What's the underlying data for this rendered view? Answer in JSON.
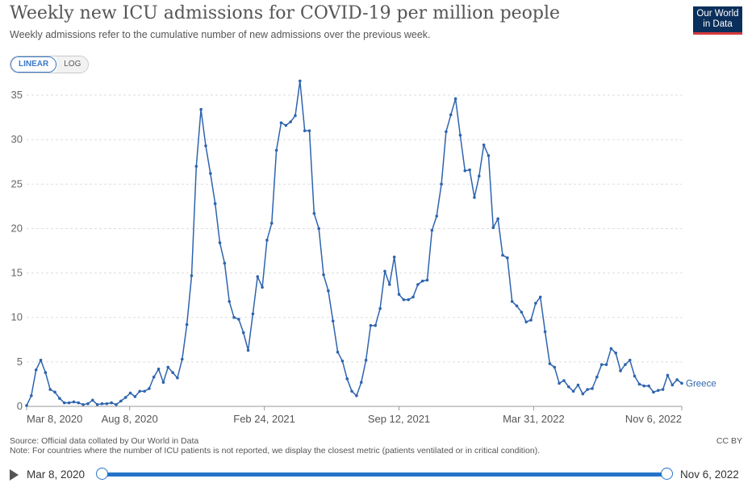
{
  "header": {
    "title": "Weekly new ICU admissions for COVID-19 per million people",
    "subtitle": "Weekly admissions refer to the cumulative number of new admissions over the previous week.",
    "logo_line1": "Our World",
    "logo_line2": "in Data"
  },
  "scale_toggle": {
    "linear_label": "LINEAR",
    "log_label": "LOG",
    "selected": "LINEAR"
  },
  "footer": {
    "source": "Source: Official data collated by Our World in Data",
    "note": "Note: For countries where the number of ICU patients is not reported, we display the closest metric (patients ventilated or in critical condition).",
    "license": "CC BY"
  },
  "timeline": {
    "start_label": "Mar 8, 2020",
    "end_label": "Nov 6, 2022"
  },
  "colors": {
    "series": "#2e64ae",
    "accent": "#2574c9",
    "logo_bg": "#0b2f5b",
    "logo_bar": "#d73a3a"
  },
  "chart_data": {
    "type": "line",
    "title": "Weekly new ICU admissions for COVID-19 per million people",
    "ylim": [
      0,
      37
    ],
    "y_ticks": [
      0,
      5,
      10,
      15,
      20,
      25,
      30,
      35
    ],
    "x_range": [
      "2020-03-08",
      "2022-11-06"
    ],
    "x_ticks": [
      {
        "date": "2020-03-08",
        "label": "Mar 8, 2020"
      },
      {
        "date": "2020-08-08",
        "label": "Aug 8, 2020"
      },
      {
        "date": "2021-02-24",
        "label": "Feb 24, 2021"
      },
      {
        "date": "2021-09-12",
        "label": "Sep 12, 2021"
      },
      {
        "date": "2022-03-31",
        "label": "Mar 31, 2022"
      },
      {
        "date": "2022-11-06",
        "label": "Nov 6, 2022"
      }
    ],
    "grid": "horizontal",
    "series": [
      {
        "name": "Greece",
        "points": [
          [
            "2020-03-08",
            0.1
          ],
          [
            "2020-03-15",
            1.2
          ],
          [
            "2020-03-22",
            4.1
          ],
          [
            "2020-03-29",
            5.2
          ],
          [
            "2020-04-05",
            3.8
          ],
          [
            "2020-04-12",
            1.9
          ],
          [
            "2020-04-19",
            1.6
          ],
          [
            "2020-04-26",
            0.9
          ],
          [
            "2020-05-03",
            0.4
          ],
          [
            "2020-05-10",
            0.4
          ],
          [
            "2020-05-17",
            0.5
          ],
          [
            "2020-05-24",
            0.4
          ],
          [
            "2020-05-31",
            0.2
          ],
          [
            "2020-06-07",
            0.3
          ],
          [
            "2020-06-14",
            0.7
          ],
          [
            "2020-06-21",
            0.2
          ],
          [
            "2020-06-28",
            0.3
          ],
          [
            "2020-07-05",
            0.3
          ],
          [
            "2020-07-12",
            0.4
          ],
          [
            "2020-07-19",
            0.2
          ],
          [
            "2020-07-26",
            0.6
          ],
          [
            "2020-08-02",
            1.0
          ],
          [
            "2020-08-09",
            1.5
          ],
          [
            "2020-08-16",
            1.1
          ],
          [
            "2020-08-23",
            1.7
          ],
          [
            "2020-08-30",
            1.7
          ],
          [
            "2020-09-06",
            2.0
          ],
          [
            "2020-09-13",
            3.3
          ],
          [
            "2020-09-20",
            4.2
          ],
          [
            "2020-09-27",
            2.7
          ],
          [
            "2020-10-04",
            4.4
          ],
          [
            "2020-10-11",
            3.8
          ],
          [
            "2020-10-18",
            3.2
          ],
          [
            "2020-10-25",
            5.3
          ],
          [
            "2020-11-01",
            9.2
          ],
          [
            "2020-11-08",
            14.7
          ],
          [
            "2020-11-15",
            27.0
          ],
          [
            "2020-11-22",
            33.4
          ],
          [
            "2020-11-29",
            29.3
          ],
          [
            "2020-12-06",
            26.2
          ],
          [
            "2020-12-13",
            22.8
          ],
          [
            "2020-12-20",
            18.4
          ],
          [
            "2020-12-27",
            16.1
          ],
          [
            "2021-01-03",
            11.8
          ],
          [
            "2021-01-10",
            10.0
          ],
          [
            "2021-01-17",
            9.8
          ],
          [
            "2021-01-24",
            8.3
          ],
          [
            "2021-01-31",
            6.3
          ],
          [
            "2021-02-07",
            10.4
          ],
          [
            "2021-02-14",
            14.6
          ],
          [
            "2021-02-21",
            13.4
          ],
          [
            "2021-02-28",
            18.7
          ],
          [
            "2021-03-07",
            20.6
          ],
          [
            "2021-03-14",
            28.8
          ],
          [
            "2021-03-21",
            31.9
          ],
          [
            "2021-03-28",
            31.6
          ],
          [
            "2021-04-04",
            32.0
          ],
          [
            "2021-04-11",
            32.7
          ],
          [
            "2021-04-18",
            36.6
          ],
          [
            "2021-04-25",
            31.0
          ],
          [
            "2021-05-02",
            31.0
          ],
          [
            "2021-05-09",
            21.7
          ],
          [
            "2021-05-16",
            20.0
          ],
          [
            "2021-05-23",
            14.8
          ],
          [
            "2021-05-30",
            13.0
          ],
          [
            "2021-06-06",
            9.6
          ],
          [
            "2021-06-13",
            6.1
          ],
          [
            "2021-06-20",
            5.1
          ],
          [
            "2021-06-27",
            3.1
          ],
          [
            "2021-07-04",
            1.7
          ],
          [
            "2021-07-11",
            1.2
          ],
          [
            "2021-07-18",
            2.7
          ],
          [
            "2021-07-25",
            5.2
          ],
          [
            "2021-08-01",
            9.1
          ],
          [
            "2021-08-08",
            9.1
          ],
          [
            "2021-08-15",
            11.0
          ],
          [
            "2021-08-22",
            15.2
          ],
          [
            "2021-08-29",
            13.7
          ],
          [
            "2021-09-05",
            16.8
          ],
          [
            "2021-09-12",
            12.6
          ],
          [
            "2021-09-19",
            12.0
          ],
          [
            "2021-09-26",
            12.0
          ],
          [
            "2021-10-03",
            12.3
          ],
          [
            "2021-10-10",
            13.7
          ],
          [
            "2021-10-17",
            14.1
          ],
          [
            "2021-10-24",
            14.2
          ],
          [
            "2021-10-31",
            19.8
          ],
          [
            "2021-11-07",
            21.4
          ],
          [
            "2021-11-14",
            25.0
          ],
          [
            "2021-11-21",
            30.9
          ],
          [
            "2021-11-28",
            32.8
          ],
          [
            "2021-12-05",
            34.6
          ],
          [
            "2021-12-12",
            30.5
          ],
          [
            "2021-12-19",
            26.5
          ],
          [
            "2021-12-26",
            26.6
          ],
          [
            "2022-01-02",
            23.5
          ],
          [
            "2022-01-09",
            25.9
          ],
          [
            "2022-01-16",
            29.4
          ],
          [
            "2022-01-23",
            28.2
          ],
          [
            "2022-01-30",
            20.1
          ],
          [
            "2022-02-06",
            21.1
          ],
          [
            "2022-02-13",
            17.0
          ],
          [
            "2022-02-20",
            16.7
          ],
          [
            "2022-02-27",
            11.8
          ],
          [
            "2022-03-06",
            11.3
          ],
          [
            "2022-03-13",
            10.6
          ],
          [
            "2022-03-20",
            9.5
          ],
          [
            "2022-03-27",
            9.7
          ],
          [
            "2022-04-03",
            11.6
          ],
          [
            "2022-04-10",
            12.3
          ],
          [
            "2022-04-17",
            8.4
          ],
          [
            "2022-04-24",
            4.8
          ],
          [
            "2022-05-01",
            4.4
          ],
          [
            "2022-05-08",
            2.6
          ],
          [
            "2022-05-15",
            2.9
          ],
          [
            "2022-05-22",
            2.2
          ],
          [
            "2022-05-29",
            1.7
          ],
          [
            "2022-06-05",
            2.4
          ],
          [
            "2022-06-12",
            1.4
          ],
          [
            "2022-06-19",
            1.9
          ],
          [
            "2022-06-26",
            2.0
          ],
          [
            "2022-07-03",
            3.3
          ],
          [
            "2022-07-10",
            4.7
          ],
          [
            "2022-07-17",
            4.7
          ],
          [
            "2022-07-24",
            6.5
          ],
          [
            "2022-07-31",
            6.0
          ],
          [
            "2022-08-07",
            4.0
          ],
          [
            "2022-08-14",
            4.7
          ],
          [
            "2022-08-21",
            5.2
          ],
          [
            "2022-08-28",
            3.4
          ],
          [
            "2022-09-04",
            2.5
          ],
          [
            "2022-09-11",
            2.3
          ],
          [
            "2022-09-18",
            2.3
          ],
          [
            "2022-09-25",
            1.6
          ],
          [
            "2022-10-02",
            1.8
          ],
          [
            "2022-10-09",
            1.9
          ],
          [
            "2022-10-16",
            3.5
          ],
          [
            "2022-10-23",
            2.4
          ],
          [
            "2022-10-30",
            3.0
          ],
          [
            "2022-11-06",
            2.6
          ]
        ]
      }
    ]
  }
}
